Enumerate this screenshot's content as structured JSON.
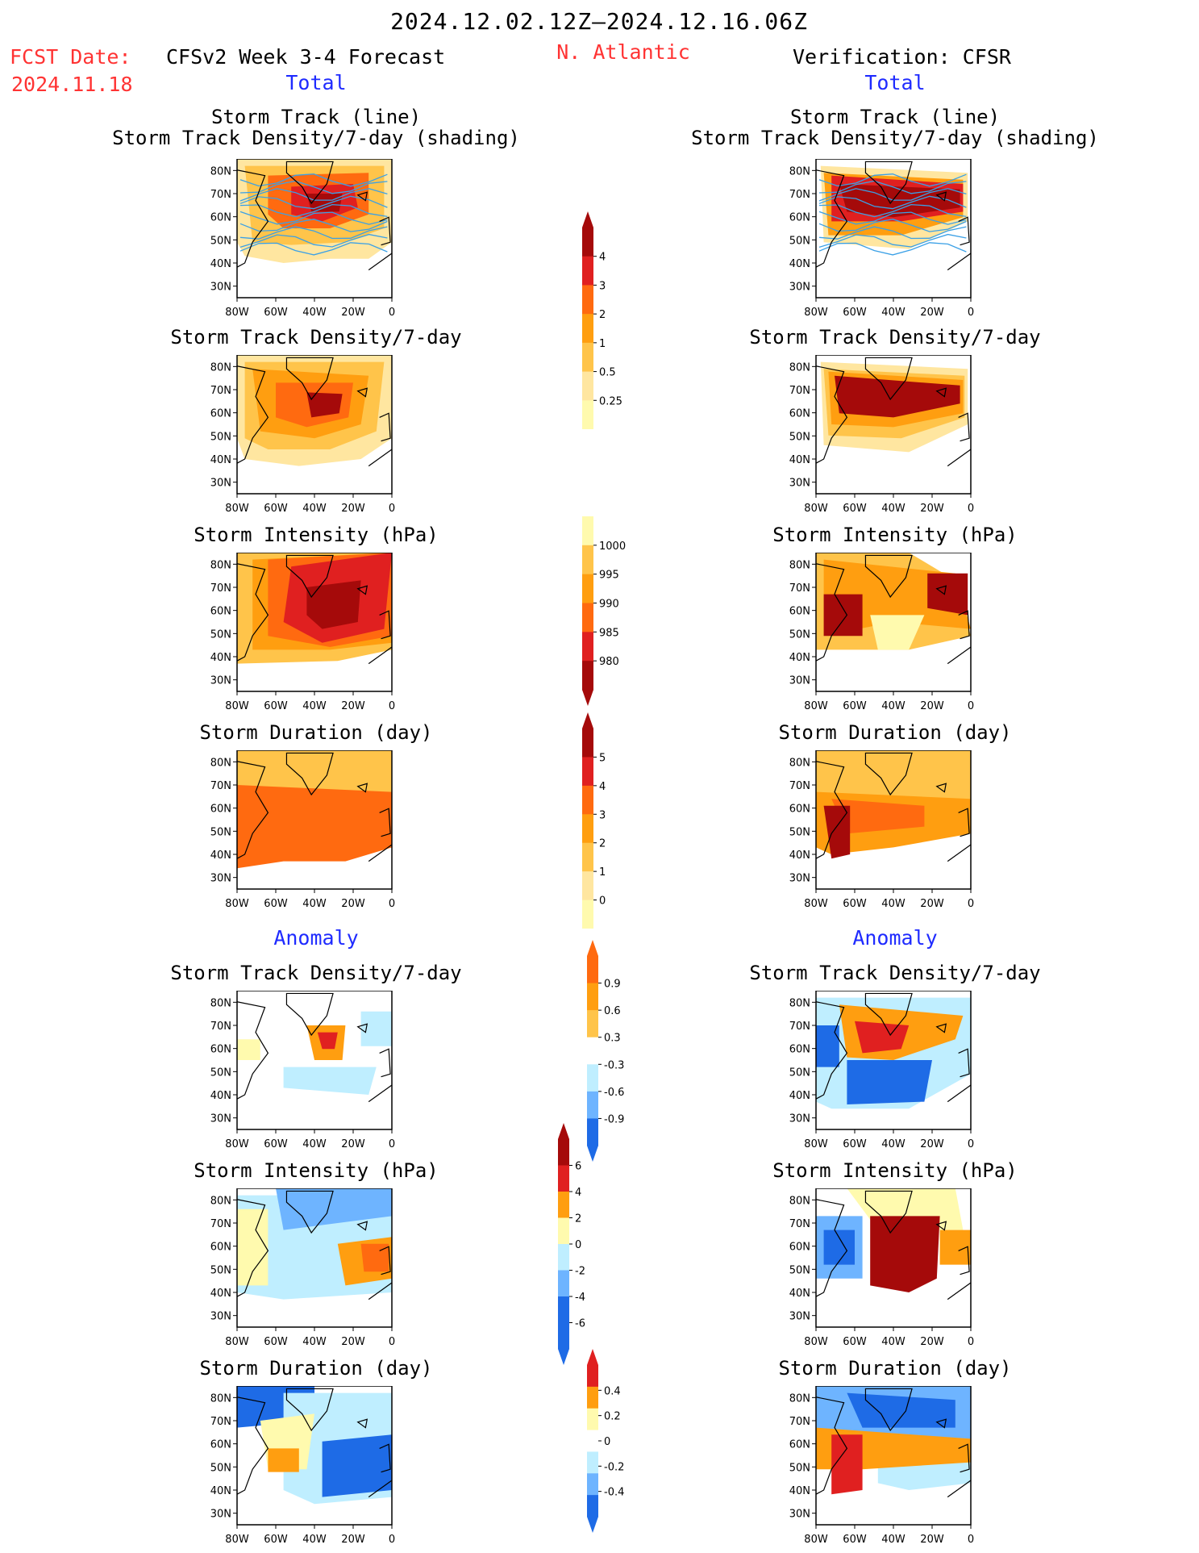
{
  "header": {
    "date_range": "2024.12.02.12Z–2024.12.16.06Z",
    "fcst_label": "FCST Date:",
    "fcst_date": "2024.11.18",
    "model": "CFSv2 Week 3-4 Forecast",
    "region": "N. Atlantic",
    "verification": "Verification: CFSR",
    "total_left": "Total",
    "total_right": "Total",
    "anomaly_left": "Anomaly",
    "anomaly_right": "Anomaly"
  },
  "panel_titles": {
    "p1_line1": "Storm Track (line)",
    "p1_line2": "Storm Track Density/7-day (shading)",
    "density": "Storm Track Density/7-day",
    "intensity": "Storm Intensity (hPa)",
    "duration": "Storm Duration (day)"
  },
  "axes": {
    "lon_ticks": [
      "80W",
      "60W",
      "40W",
      "20W",
      "0"
    ],
    "lat_ticks": [
      "80N",
      "70N",
      "60N",
      "50N",
      "40N",
      "30N"
    ]
  },
  "colors": {
    "tan": "#ffe6a0",
    "yellow": "#fffaae",
    "lightorange": "#ffc44a",
    "orange": "#ff9e10",
    "deeporange": "#ff6a10",
    "red": "#e02020",
    "darkred": "#a50a0a",
    "lightblue": "#bfeeff",
    "midblue": "#6eb4ff",
    "blue": "#1e6be6",
    "track": "#3aa0e6"
  },
  "colorbars": [
    {
      "id": "cb-density",
      "labels": [
        "4",
        "3",
        "2",
        "1",
        "0.5",
        "0.25"
      ]
    },
    {
      "id": "cb-intensity",
      "labels": [
        "1000",
        "995",
        "990",
        "985",
        "980"
      ]
    },
    {
      "id": "cb-duration",
      "labels": [
        "5",
        "4",
        "3",
        "2",
        "1",
        "0"
      ]
    },
    {
      "id": "cb-dens-anom",
      "labels": [
        "0.9",
        "0.6",
        "0.3",
        "-0.3",
        "-0.6",
        "-0.9"
      ]
    },
    {
      "id": "cb-int-anom",
      "labels": [
        "6",
        "4",
        "2",
        "0",
        "-2",
        "-4",
        "-6"
      ]
    },
    {
      "id": "cb-dur-anom",
      "labels": [
        "0.4",
        "0.2",
        "0",
        "-0.2",
        "-0.4"
      ]
    }
  ],
  "chart_data": [
    {
      "type": "heatmap",
      "id": "fc-track",
      "title": "Storm Track (line) / Storm Track Density/7-day (shading)",
      "xlim": [
        -80,
        0
      ],
      "ylim": [
        25,
        85
      ],
      "dominant": "orange with dark red core near 60N 40W"
    },
    {
      "type": "heatmap",
      "id": "ob-track",
      "title": "Storm Track (line) / Storm Track Density/7-day (shading)",
      "xlim": [
        -80,
        0
      ],
      "ylim": [
        25,
        85
      ],
      "dominant": "dark red band 55-70N"
    },
    {
      "type": "heatmap",
      "id": "fc-density",
      "title": "Storm Track Density/7-day",
      "xlim": [
        -80,
        0
      ],
      "ylim": [
        25,
        85
      ]
    },
    {
      "type": "heatmap",
      "id": "ob-density",
      "title": "Storm Track Density/7-day",
      "xlim": [
        -80,
        0
      ],
      "ylim": [
        25,
        85
      ]
    },
    {
      "type": "heatmap",
      "id": "fc-intensity",
      "title": "Storm Intensity (hPa)",
      "xlim": [
        -80,
        0
      ],
      "ylim": [
        25,
        85
      ]
    },
    {
      "type": "heatmap",
      "id": "ob-intensity",
      "title": "Storm Intensity (hPa)",
      "xlim": [
        -80,
        0
      ],
      "ylim": [
        25,
        85
      ]
    },
    {
      "type": "heatmap",
      "id": "fc-duration",
      "title": "Storm Duration (day)",
      "xlim": [
        -80,
        0
      ],
      "ylim": [
        25,
        85
      ]
    },
    {
      "type": "heatmap",
      "id": "ob-duration",
      "title": "Storm Duration (day)",
      "xlim": [
        -80,
        0
      ],
      "ylim": [
        25,
        85
      ]
    },
    {
      "type": "heatmap",
      "id": "fc-dens-anom",
      "title": "Storm Track Density/7-day",
      "xlim": [
        -80,
        0
      ],
      "ylim": [
        25,
        85
      ]
    },
    {
      "type": "heatmap",
      "id": "ob-dens-anom",
      "title": "Storm Track Density/7-day",
      "xlim": [
        -80,
        0
      ],
      "ylim": [
        25,
        85
      ]
    },
    {
      "type": "heatmap",
      "id": "fc-int-anom",
      "title": "Storm Intensity (hPa)",
      "xlim": [
        -80,
        0
      ],
      "ylim": [
        25,
        85
      ]
    },
    {
      "type": "heatmap",
      "id": "ob-int-anom",
      "title": "Storm Intensity (hPa)",
      "xlim": [
        -80,
        0
      ],
      "ylim": [
        25,
        85
      ]
    },
    {
      "type": "heatmap",
      "id": "fc-dur-anom",
      "title": "Storm Duration (day)",
      "xlim": [
        -80,
        0
      ],
      "ylim": [
        25,
        85
      ]
    },
    {
      "type": "heatmap",
      "id": "ob-dur-anom",
      "title": "Storm Duration (day)",
      "xlim": [
        -80,
        0
      ],
      "ylim": [
        25,
        85
      ]
    }
  ]
}
